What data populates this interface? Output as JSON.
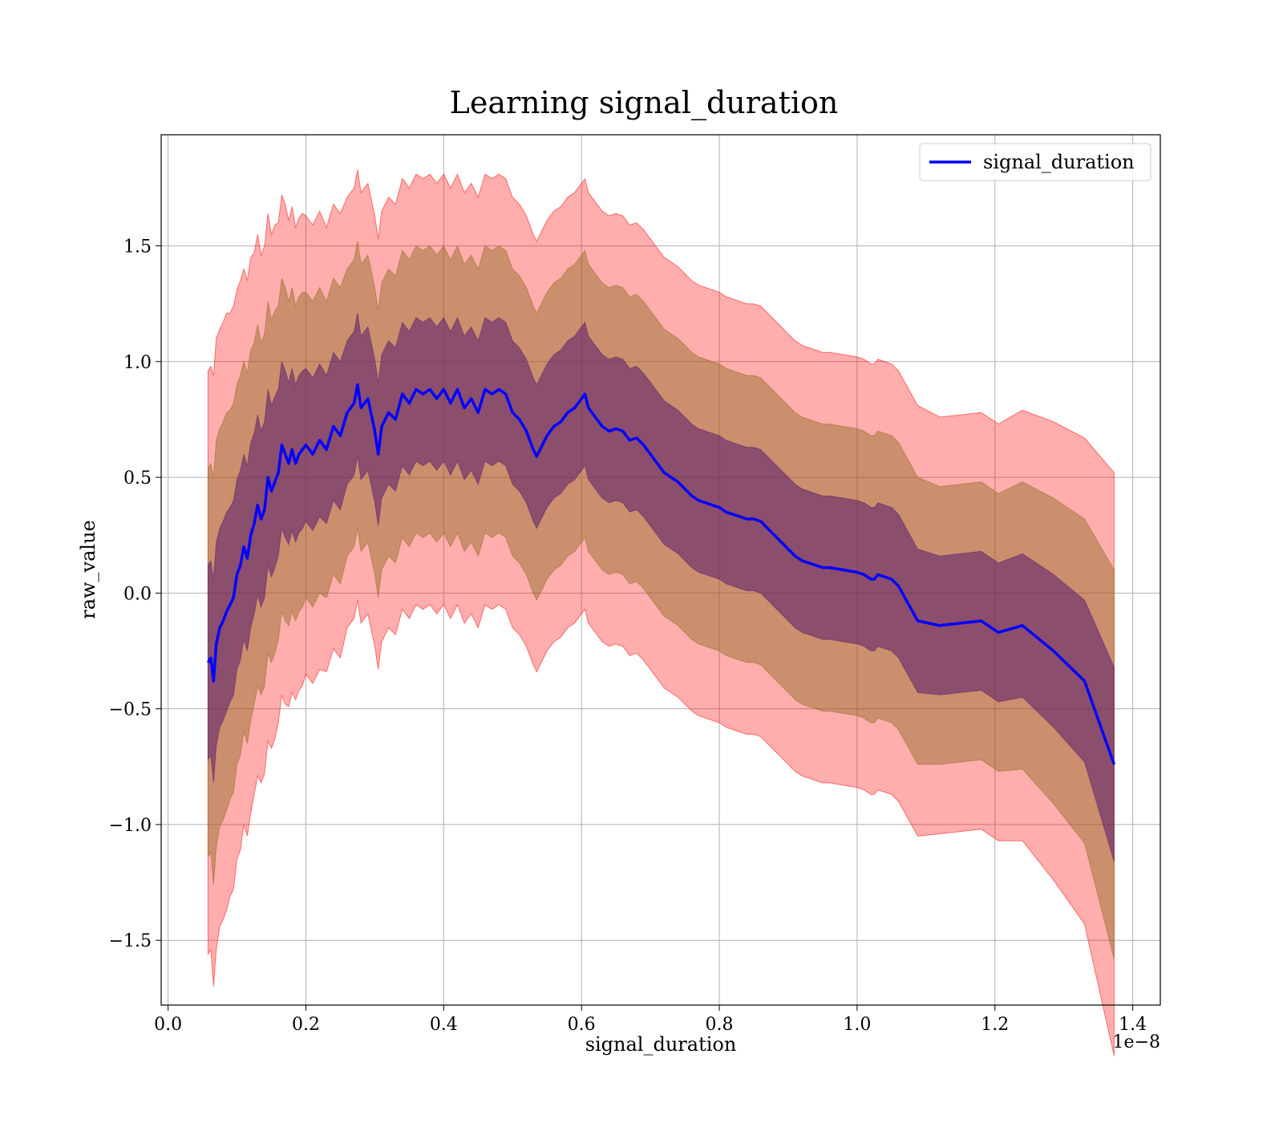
{
  "chart_data": {
    "type": "line",
    "title": "Learning signal_duration",
    "xlabel": "signal_duration",
    "ylabel": "raw_value",
    "x_offset_label": "1e−8",
    "xlim": [
      -0.01,
      1.44
    ],
    "ylim": [
      -1.78,
      1.98
    ],
    "x_ticks": [
      0.0,
      0.2,
      0.4,
      0.6,
      0.8,
      1.0,
      1.2,
      1.4
    ],
    "x_tick_labels": [
      "0.0",
      "0.2",
      "0.4",
      "0.6",
      "0.8",
      "1.0",
      "1.2",
      "1.4"
    ],
    "y_ticks": [
      -1.5,
      -1.0,
      -0.5,
      0.0,
      0.5,
      1.0,
      1.5
    ],
    "y_tick_labels": [
      "−1.5",
      "−1.0",
      "−0.5",
      "0.0",
      "0.5",
      "1.0",
      "1.5"
    ],
    "grid": true,
    "legend": "top-right",
    "colors": {
      "line": "#0000ff",
      "band_outer": "#ff0000",
      "band_middle": "#8b6b1e",
      "band_inner": "#5a1a6e",
      "grid": "#b0b0b0"
    },
    "series": [
      {
        "name": "signal_duration",
        "x": [
          0.058,
          0.062,
          0.066,
          0.07,
          0.075,
          0.08,
          0.085,
          0.09,
          0.095,
          0.1,
          0.105,
          0.11,
          0.115,
          0.12,
          0.125,
          0.13,
          0.135,
          0.14,
          0.145,
          0.15,
          0.155,
          0.16,
          0.165,
          0.17,
          0.175,
          0.18,
          0.185,
          0.19,
          0.195,
          0.2,
          0.21,
          0.22,
          0.23,
          0.24,
          0.25,
          0.26,
          0.27,
          0.275,
          0.28,
          0.29,
          0.3,
          0.305,
          0.31,
          0.32,
          0.33,
          0.34,
          0.35,
          0.36,
          0.37,
          0.38,
          0.39,
          0.4,
          0.41,
          0.42,
          0.43,
          0.44,
          0.45,
          0.46,
          0.47,
          0.48,
          0.49,
          0.5,
          0.51,
          0.52,
          0.53,
          0.535,
          0.54,
          0.55,
          0.56,
          0.57,
          0.58,
          0.59,
          0.6,
          0.605,
          0.61,
          0.62,
          0.63,
          0.64,
          0.65,
          0.66,
          0.67,
          0.68,
          0.69,
          0.7,
          0.71,
          0.72,
          0.73,
          0.74,
          0.75,
          0.76,
          0.77,
          0.78,
          0.79,
          0.8,
          0.81,
          0.82,
          0.83,
          0.84,
          0.85,
          0.86,
          0.87,
          0.88,
          0.89,
          0.9,
          0.91,
          0.92,
          0.93,
          0.94,
          0.95,
          0.96,
          0.98,
          1.0,
          1.01,
          1.02,
          1.025,
          1.03,
          1.05,
          1.06,
          1.088,
          1.12,
          1.15,
          1.18,
          1.205,
          1.24,
          1.285,
          1.33,
          1.373
        ],
        "values": [
          -0.3,
          -0.28,
          -0.38,
          -0.22,
          -0.15,
          -0.12,
          -0.08,
          -0.05,
          -0.02,
          0.08,
          0.12,
          0.2,
          0.15,
          0.25,
          0.3,
          0.38,
          0.32,
          0.36,
          0.5,
          0.44,
          0.48,
          0.52,
          0.64,
          0.6,
          0.56,
          0.62,
          0.56,
          0.6,
          0.62,
          0.64,
          0.6,
          0.66,
          0.62,
          0.72,
          0.68,
          0.78,
          0.82,
          0.9,
          0.8,
          0.84,
          0.7,
          0.6,
          0.72,
          0.78,
          0.75,
          0.86,
          0.82,
          0.88,
          0.86,
          0.88,
          0.84,
          0.88,
          0.82,
          0.88,
          0.8,
          0.84,
          0.78,
          0.88,
          0.86,
          0.88,
          0.86,
          0.78,
          0.75,
          0.7,
          0.62,
          0.59,
          0.62,
          0.68,
          0.72,
          0.74,
          0.78,
          0.8,
          0.84,
          0.86,
          0.8,
          0.76,
          0.72,
          0.7,
          0.71,
          0.7,
          0.66,
          0.67,
          0.64,
          0.6,
          0.56,
          0.52,
          0.5,
          0.48,
          0.45,
          0.42,
          0.4,
          0.39,
          0.38,
          0.37,
          0.35,
          0.34,
          0.33,
          0.32,
          0.32,
          0.31,
          0.28,
          0.25,
          0.22,
          0.19,
          0.16,
          0.14,
          0.13,
          0.12,
          0.11,
          0.11,
          0.1,
          0.09,
          0.08,
          0.06,
          0.06,
          0.08,
          0.06,
          0.03,
          -0.12,
          -0.14,
          -0.13,
          -0.12,
          -0.17,
          -0.14,
          -0.25,
          -0.38,
          -0.74
        ],
        "std": [
          0.42,
          0.42,
          0.44,
          0.44,
          0.43,
          0.43,
          0.43,
          0.42,
          0.42,
          0.41,
          0.41,
          0.4,
          0.4,
          0.4,
          0.39,
          0.39,
          0.38,
          0.38,
          0.38,
          0.37,
          0.37,
          0.36,
          0.36,
          0.36,
          0.35,
          0.35,
          0.34,
          0.34,
          0.34,
          0.33,
          0.33,
          0.33,
          0.32,
          0.32,
          0.32,
          0.31,
          0.31,
          0.31,
          0.31,
          0.31,
          0.31,
          0.31,
          0.31,
          0.31,
          0.31,
          0.31,
          0.31,
          0.31,
          0.31,
          0.31,
          0.31,
          0.31,
          0.31,
          0.31,
          0.31,
          0.31,
          0.31,
          0.31,
          0.31,
          0.31,
          0.31,
          0.31,
          0.31,
          0.31,
          0.31,
          0.31,
          0.31,
          0.31,
          0.31,
          0.31,
          0.31,
          0.31,
          0.31,
          0.31,
          0.31,
          0.31,
          0.31,
          0.31,
          0.31,
          0.31,
          0.31,
          0.31,
          0.31,
          0.31,
          0.31,
          0.31,
          0.31,
          0.31,
          0.31,
          0.31,
          0.31,
          0.31,
          0.31,
          0.31,
          0.31,
          0.31,
          0.31,
          0.31,
          0.31,
          0.31,
          0.31,
          0.31,
          0.31,
          0.31,
          0.31,
          0.31,
          0.31,
          0.31,
          0.31,
          0.31,
          0.31,
          0.31,
          0.31,
          0.31,
          0.31,
          0.31,
          0.31,
          0.31,
          0.31,
          0.3,
          0.3,
          0.3,
          0.3,
          0.31,
          0.33,
          0.35,
          0.42
        ]
      }
    ]
  }
}
